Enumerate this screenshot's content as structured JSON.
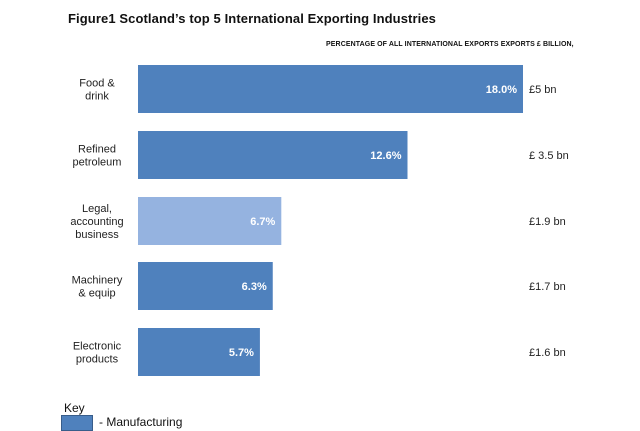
{
  "chart_data": {
    "type": "bar",
    "orientation": "horizontal",
    "title": "Figure1 Scotland’s top 5 International Exporting Industries",
    "subtitle": "PERCENTAGE OF ALL INTERNATIONAL EXPORTS EXPORTS £ BILLION,",
    "categories": [
      [
        "Food &",
        "drink"
      ],
      [
        "Refined",
        "petroleum"
      ],
      [
        "Legal,",
        "accounting",
        "business"
      ],
      [
        "Machinery",
        "& equip"
      ],
      [
        "Electronic",
        "products"
      ]
    ],
    "values": [
      18.0,
      12.6,
      6.7,
      6.3,
      5.7
    ],
    "pct_labels": [
      "18.0%",
      "12.6%",
      "6.7%",
      "6.3%",
      "5.7%"
    ],
    "value_labels": [
      "£5 bn",
      "£ 3.5 bn",
      "£1.9 bn",
      "£1.7 bn",
      "£1.6 bn"
    ],
    "bar_groups": [
      "manufacturing",
      "manufacturing",
      "services",
      "manufacturing",
      "manufacturing"
    ],
    "colors": {
      "manufacturing": "#4f81bd",
      "services": "#95b3e0"
    },
    "xlim": [
      0,
      18.0
    ]
  },
  "key": {
    "title": "Key",
    "items": [
      {
        "label": "- Manufacturing",
        "color": "#4f81bd"
      }
    ]
  }
}
